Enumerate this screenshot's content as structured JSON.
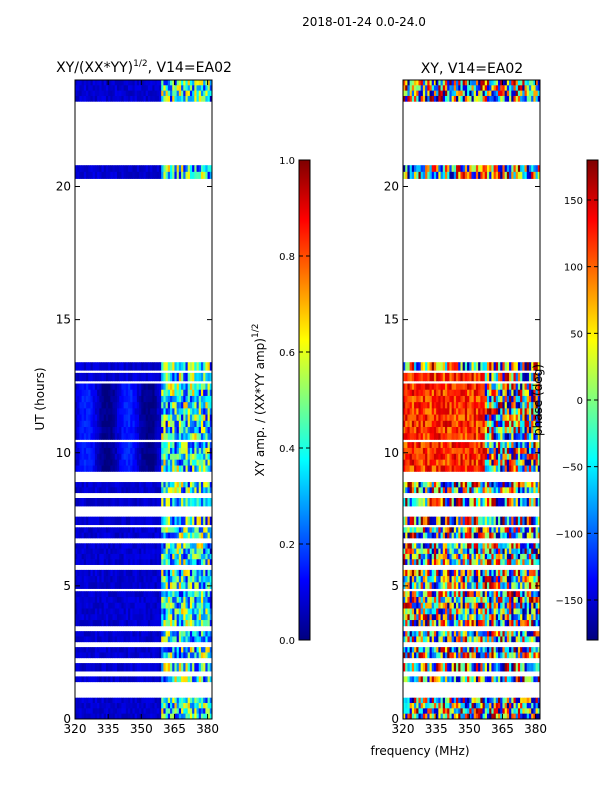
{
  "figure_title": "2018-01-24 0.0-24.0",
  "colors": {
    "jet": [
      "#00007f",
      "#0000ff",
      "#007fff",
      "#00ffff",
      "#7fff7f",
      "#ffff00",
      "#ff7f00",
      "#ff0000",
      "#7f0000"
    ],
    "frame": "#000000",
    "gap": "#ffffff"
  },
  "chart_data": [
    {
      "type": "heatmap",
      "title": "XY/(XX*YY)^{1/2}, V14=EA02",
      "title_main": "XY/(XX*YY)",
      "title_sup": "1/2",
      "title_tail": ", V14=EA02",
      "xlabel": "frequency (MHz)",
      "ylabel": "UT (hours)",
      "xlim": [
        320,
        382
      ],
      "ylim": [
        0,
        24
      ],
      "xticks": [
        320,
        335,
        350,
        365,
        380
      ],
      "yticks": [
        0,
        5,
        10,
        15,
        20
      ],
      "value_range": [
        0.0,
        1.0
      ],
      "colorbar": {
        "label_main": "XY amp. / (XX*YY amp)",
        "label_sup": "1/2",
        "ticks": [
          "0.0",
          "0.2",
          "0.4",
          "0.6",
          "0.8",
          "1.0"
        ],
        "tick_values": [
          0.0,
          0.2,
          0.4,
          0.6,
          0.8,
          1.0
        ]
      },
      "data_ut_segments": [
        [
          0.0,
          0.8
        ],
        [
          1.4,
          1.6
        ],
        [
          1.8,
          2.1
        ],
        [
          2.3,
          2.7
        ],
        [
          2.9,
          3.3
        ],
        [
          3.5,
          4.8
        ],
        [
          4.9,
          5.6
        ],
        [
          5.8,
          6.6
        ],
        [
          6.8,
          7.2
        ],
        [
          7.3,
          7.6
        ],
        [
          8.0,
          8.3
        ],
        [
          8.5,
          8.9
        ],
        [
          9.3,
          10.4
        ],
        [
          10.5,
          12.6
        ],
        [
          12.7,
          13.0
        ],
        [
          13.1,
          13.4
        ],
        [
          20.3,
          20.8
        ],
        [
          23.2,
          24.0
        ]
      ],
      "rfi_channel_mhz": [
        360,
        362,
        364,
        366,
        368,
        370,
        372,
        374,
        376,
        378,
        380
      ],
      "typical_level_clean": 0.05,
      "typical_level_rfi": 0.4
    },
    {
      "type": "heatmap",
      "title": "XY, V14=EA02",
      "xlabel": "frequency (MHz)",
      "xlim": [
        320,
        382
      ],
      "ylim": [
        0,
        24
      ],
      "xticks": [
        320,
        335,
        350,
        365,
        380
      ],
      "yticks": [
        0,
        5,
        10,
        15,
        20
      ],
      "value_range": [
        -180,
        180
      ],
      "colorbar": {
        "label": "phase (deg)",
        "ticks": [
          "150",
          "100",
          "50",
          "0",
          "−50",
          "−100",
          "−150"
        ],
        "tick_values": [
          150,
          100,
          50,
          0,
          -50,
          -100,
          -150
        ]
      },
      "data_ut_segments": [
        [
          0.0,
          0.8
        ],
        [
          1.4,
          1.6
        ],
        [
          1.8,
          2.1
        ],
        [
          2.3,
          2.7
        ],
        [
          2.9,
          3.3
        ],
        [
          3.5,
          4.8
        ],
        [
          4.9,
          5.6
        ],
        [
          5.8,
          6.6
        ],
        [
          6.8,
          7.2
        ],
        [
          7.3,
          7.6
        ],
        [
          8.0,
          8.3
        ],
        [
          8.5,
          8.9
        ],
        [
          9.3,
          10.4
        ],
        [
          10.5,
          12.6
        ],
        [
          12.7,
          13.0
        ],
        [
          13.1,
          13.4
        ],
        [
          20.3,
          20.8
        ],
        [
          23.2,
          24.0
        ]
      ],
      "phase_band_ut": [
        9.3,
        13.0
      ],
      "phase_band_deg": 120
    }
  ]
}
